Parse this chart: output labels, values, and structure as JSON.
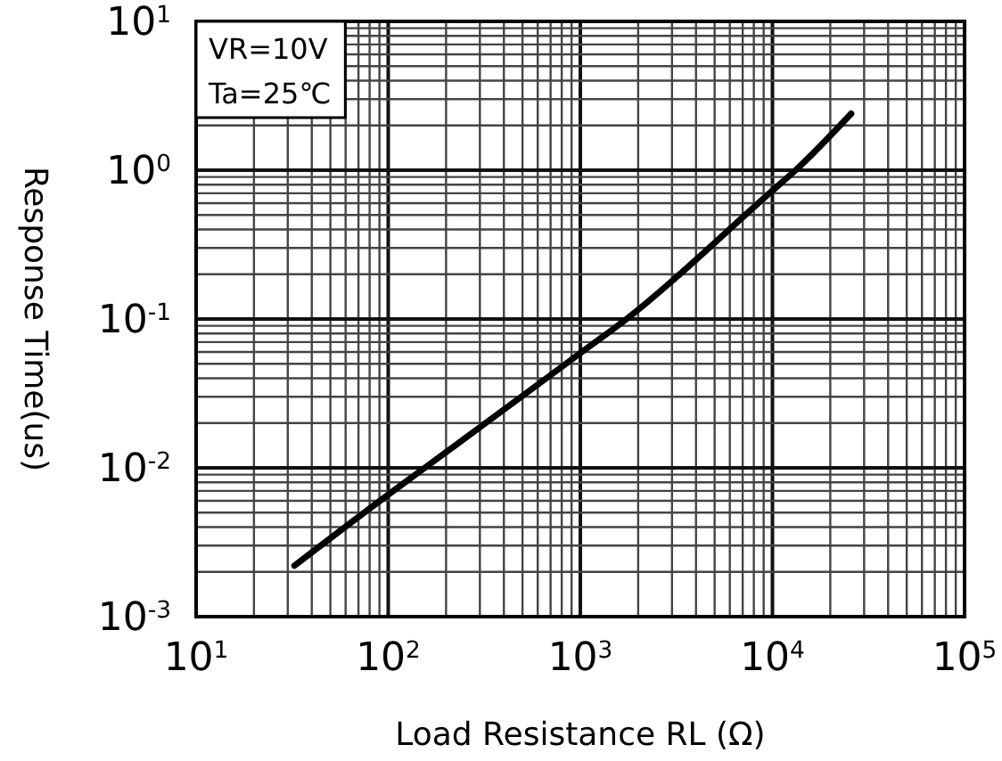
{
  "chart_data": {
    "type": "line",
    "xlabel": "Load Resistance RL (Ω)",
    "ylabel": "Response Time(us)",
    "log": "xy",
    "grid": true,
    "xlim": [
      10,
      100000
    ],
    "ylim": [
      0.001,
      10
    ],
    "xticks": [
      {
        "value": 10,
        "label": "10$^{1}$"
      },
      {
        "value": 100,
        "label": "10$^{2}$"
      },
      {
        "value": 1000,
        "label": "10$^{3}$"
      },
      {
        "value": 10000,
        "label": "10$^{4}$"
      },
      {
        "value": 100000,
        "label": "10$^{5}$"
      }
    ],
    "yticks": [
      {
        "value": 0.001,
        "label": "10$^{-3}$"
      },
      {
        "value": 0.01,
        "label": "10$^{-2}$"
      },
      {
        "value": 0.1,
        "label": "10$^{-1}$"
      },
      {
        "value": 1,
        "label": "10$^{0}$"
      },
      {
        "value": 10,
        "label": "10$^{1}$"
      }
    ],
    "annotations": [
      "VR=10V",
      "Ta=25℃"
    ],
    "series": [
      {
        "color": "#000000",
        "x": [
          32.5,
          100,
          155,
          1000,
          1740,
          10000,
          13200,
          25700
        ],
        "values": [
          0.0022,
          0.0066,
          0.01,
          0.059,
          0.1,
          0.73,
          1,
          2.4
        ]
      }
    ]
  }
}
